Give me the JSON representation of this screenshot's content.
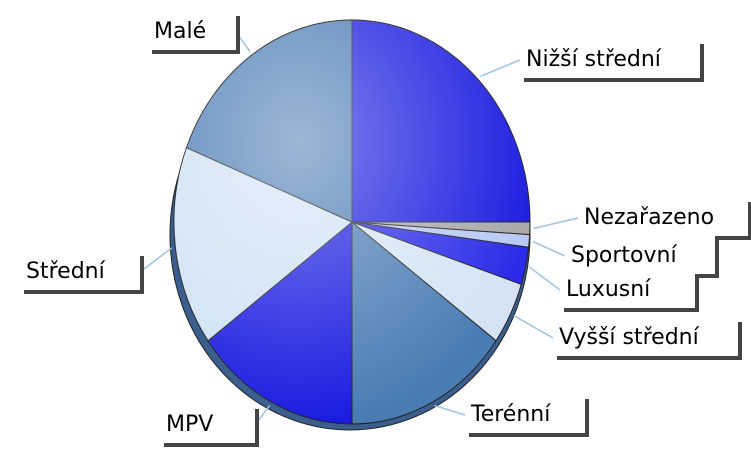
{
  "chart_data": {
    "type": "pie",
    "categories": [
      "Nižší střední",
      "Nezařazeno",
      "Sportovní",
      "Luxusní",
      "Vyšší střední",
      "Terénní",
      "MPV",
      "Střední",
      "Malé"
    ],
    "values": [
      25,
      1,
      1,
      3,
      5,
      15,
      15,
      16,
      19
    ],
    "colors": [
      "#1c1ce0",
      "#a8a8a8",
      "#b8c8f8",
      "#2a2ae8",
      "#d4e4f4",
      "#4a7cb4",
      "#1c1ce0",
      "#cfe2f4",
      "#4a7cb4"
    ]
  }
}
